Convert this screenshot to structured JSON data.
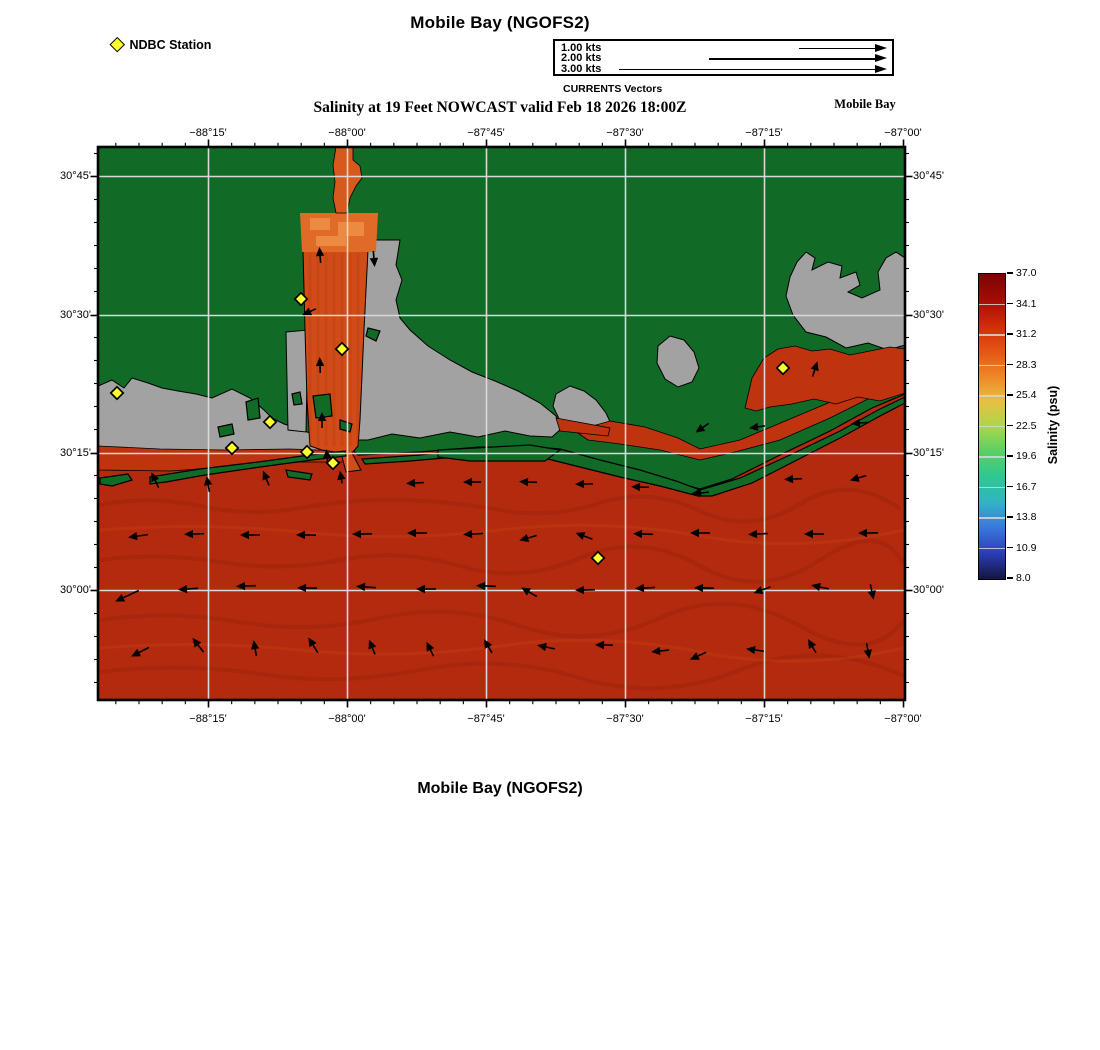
{
  "header": {
    "title": "Mobile Bay (NGOFS2)",
    "ndbc_label": "NDBC Station",
    "currents_legend": {
      "items": [
        "1.00 kts",
        "2.00 kts",
        "3.00 kts"
      ],
      "caption": "CURRENTS Vectors"
    },
    "subtitle": "Salinity at 19 Feet NOWCAST valid Feb 18 2026 18:00Z",
    "region_label": "Mobile Bay"
  },
  "footer": {
    "title": "Mobile Bay (NGOFS2)"
  },
  "axes": {
    "lon": {
      "labels": [
        "−88°15'",
        "−88°00'",
        "−87°45'",
        "−87°30'",
        "−87°15'",
        "−87°00'"
      ],
      "x": [
        208,
        347,
        486,
        625,
        764,
        903
      ]
    },
    "lat": {
      "labels": [
        "30°45'",
        "30°30'",
        "30°15'",
        "30°00'"
      ],
      "y": [
        176,
        315,
        453,
        590
      ]
    }
  },
  "colorbar": {
    "title": "Salinity (psu)",
    "ticks": [
      "37.0",
      "34.1",
      "31.2",
      "28.3",
      "25.4",
      "22.5",
      "19.6",
      "16.7",
      "13.8",
      "10.9",
      "8.0"
    ],
    "gradient": [
      "#7a0403",
      "#a30c05",
      "#cf2a0a",
      "#e45413",
      "#ee8526",
      "#e9bf41",
      "#abd64c",
      "#57d063",
      "#2fc794",
      "#32b3c4",
      "#3a76dd",
      "#2a3db5",
      "#151540"
    ]
  },
  "stations": {
    "marker": "yellow-diamond",
    "points": [
      [
        117,
        393
      ],
      [
        301,
        299
      ],
      [
        342,
        349
      ],
      [
        270,
        422
      ],
      [
        232,
        448
      ],
      [
        307,
        452
      ],
      [
        333,
        463
      ],
      [
        783,
        368
      ],
      [
        598,
        558
      ]
    ]
  },
  "currents": {
    "arrows": [
      [
        320,
        255,
        95,
        16
      ],
      [
        374,
        259,
        -85,
        16
      ],
      [
        309,
        312,
        205,
        15
      ],
      [
        320,
        365,
        92,
        16
      ],
      [
        322,
        420,
        90,
        16
      ],
      [
        327,
        456,
        95,
        14
      ],
      [
        341,
        477,
        100,
        13
      ],
      [
        815,
        369,
        72,
        16
      ],
      [
        702,
        428,
        215,
        16
      ],
      [
        757,
        427,
        188,
        16
      ],
      [
        860,
        423,
        184,
        18
      ],
      [
        155,
        480,
        115,
        17
      ],
      [
        208,
        484,
        100,
        16
      ],
      [
        266,
        478,
        112,
        16
      ],
      [
        415,
        483,
        183,
        18
      ],
      [
        472,
        482,
        180,
        18
      ],
      [
        528,
        482,
        178,
        18
      ],
      [
        584,
        484,
        181,
        18
      ],
      [
        640,
        487,
        178,
        18
      ],
      [
        700,
        493,
        185,
        18
      ],
      [
        793,
        479,
        182,
        18
      ],
      [
        858,
        478,
        196,
        17
      ],
      [
        138,
        536,
        188,
        20
      ],
      [
        194,
        534,
        182,
        20
      ],
      [
        250,
        535,
        180,
        20
      ],
      [
        306,
        535,
        179,
        20
      ],
      [
        362,
        534,
        181,
        20
      ],
      [
        417,
        533,
        180,
        20
      ],
      [
        473,
        534,
        183,
        20
      ],
      [
        528,
        538,
        196,
        18
      ],
      [
        584,
        536,
        160,
        18
      ],
      [
        643,
        534,
        178,
        20
      ],
      [
        700,
        533,
        180,
        20
      ],
      [
        758,
        534,
        183,
        20
      ],
      [
        814,
        534,
        180,
        20
      ],
      [
        868,
        533,
        181,
        20
      ],
      [
        127,
        596,
        205,
        26
      ],
      [
        188,
        589,
        184,
        20
      ],
      [
        246,
        586,
        182,
        20
      ],
      [
        307,
        588,
        179,
        20
      ],
      [
        366,
        587,
        176,
        20
      ],
      [
        426,
        589,
        180,
        20
      ],
      [
        486,
        586,
        178,
        20
      ],
      [
        529,
        592,
        150,
        18
      ],
      [
        585,
        590,
        181,
        20
      ],
      [
        645,
        588,
        183,
        20
      ],
      [
        704,
        588,
        179,
        20
      ],
      [
        762,
        590,
        200,
        18
      ],
      [
        820,
        587,
        168,
        18
      ],
      [
        872,
        592,
        -78,
        16
      ],
      [
        140,
        652,
        207,
        20
      ],
      [
        198,
        645,
        128,
        18
      ],
      [
        255,
        648,
        100,
        16
      ],
      [
        313,
        645,
        122,
        18
      ],
      [
        372,
        647,
        112,
        16
      ],
      [
        430,
        649,
        116,
        16
      ],
      [
        488,
        646,
        120,
        16
      ],
      [
        546,
        647,
        168,
        18
      ],
      [
        604,
        645,
        179,
        18
      ],
      [
        660,
        651,
        186,
        18
      ],
      [
        698,
        656,
        205,
        18
      ],
      [
        755,
        650,
        172,
        18
      ],
      [
        812,
        646,
        120,
        16
      ],
      [
        868,
        651,
        -80,
        16
      ]
    ]
  },
  "colors": {
    "land": "#116b26",
    "masked": "#a2a2a2",
    "gulf": "#b32a0e",
    "gulf_dark": "#8f1d06",
    "bay": "#d14c18",
    "delta": "#e06a28",
    "delta_bright": "#ef8f45",
    "river": "#d65a1e",
    "east_red": "#c0330f",
    "station": "#ffff2e",
    "grid": "#d9d9d9"
  },
  "chart_data": {
    "type": "heatmap",
    "title": "Salinity at 19 Feet NOWCAST valid Feb 18 2026 18:00Z",
    "region": "Mobile Bay (NGOFS2)",
    "colorbar": {
      "label": "Salinity (psu)",
      "min": 8.0,
      "max": 37.0,
      "levels": [
        37.0,
        34.1,
        31.2,
        28.3,
        25.4,
        22.5,
        19.6,
        16.7,
        13.8,
        10.9,
        8.0
      ]
    },
    "x_axis": {
      "ticks": [
        "−88°15'",
        "−88°00'",
        "−87°45'",
        "−87°30'",
        "−87°15'",
        "−87°00'"
      ]
    },
    "y_axis": {
      "ticks": [
        "30°45'",
        "30°30'",
        "30°15'",
        "30°00'"
      ]
    },
    "vector_legend_kts": [
      1.0,
      2.0,
      3.0
    ],
    "ndbc_station_count": 9
  }
}
